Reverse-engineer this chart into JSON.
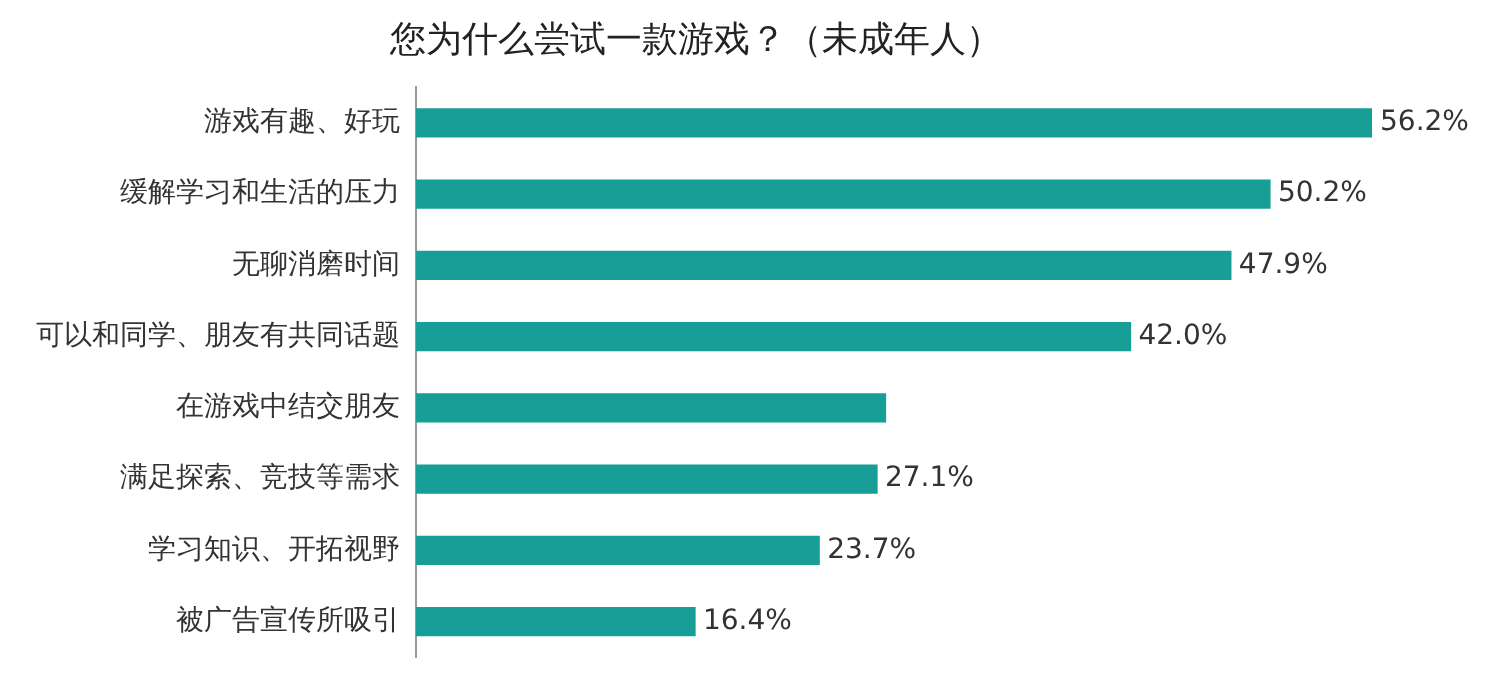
{
  "chart_data": {
    "type": "bar",
    "orientation": "horizontal",
    "title": "您为什么尝试一款游戏？（未成年人）",
    "categories": [
      "游戏有趣、好玩",
      "缓解学习和生活的压力",
      "无聊消磨时间",
      "可以和同学、朋友有共同话题",
      "在游戏中结交朋友",
      "满足探索、竞技等需求",
      "学习知识、开拓视野",
      "被广告宣传所吸引"
    ],
    "values": [
      56.2,
      50.2,
      47.9,
      42.0,
      27.6,
      27.1,
      23.7,
      16.4
    ],
    "value_labels": [
      "56.2%",
      "50.2%",
      "47.9%",
      "42.0%",
      null,
      "27.1%",
      "23.7%",
      "16.4%"
    ],
    "color": "#169e97",
    "grid": false,
    "legend": false
  }
}
